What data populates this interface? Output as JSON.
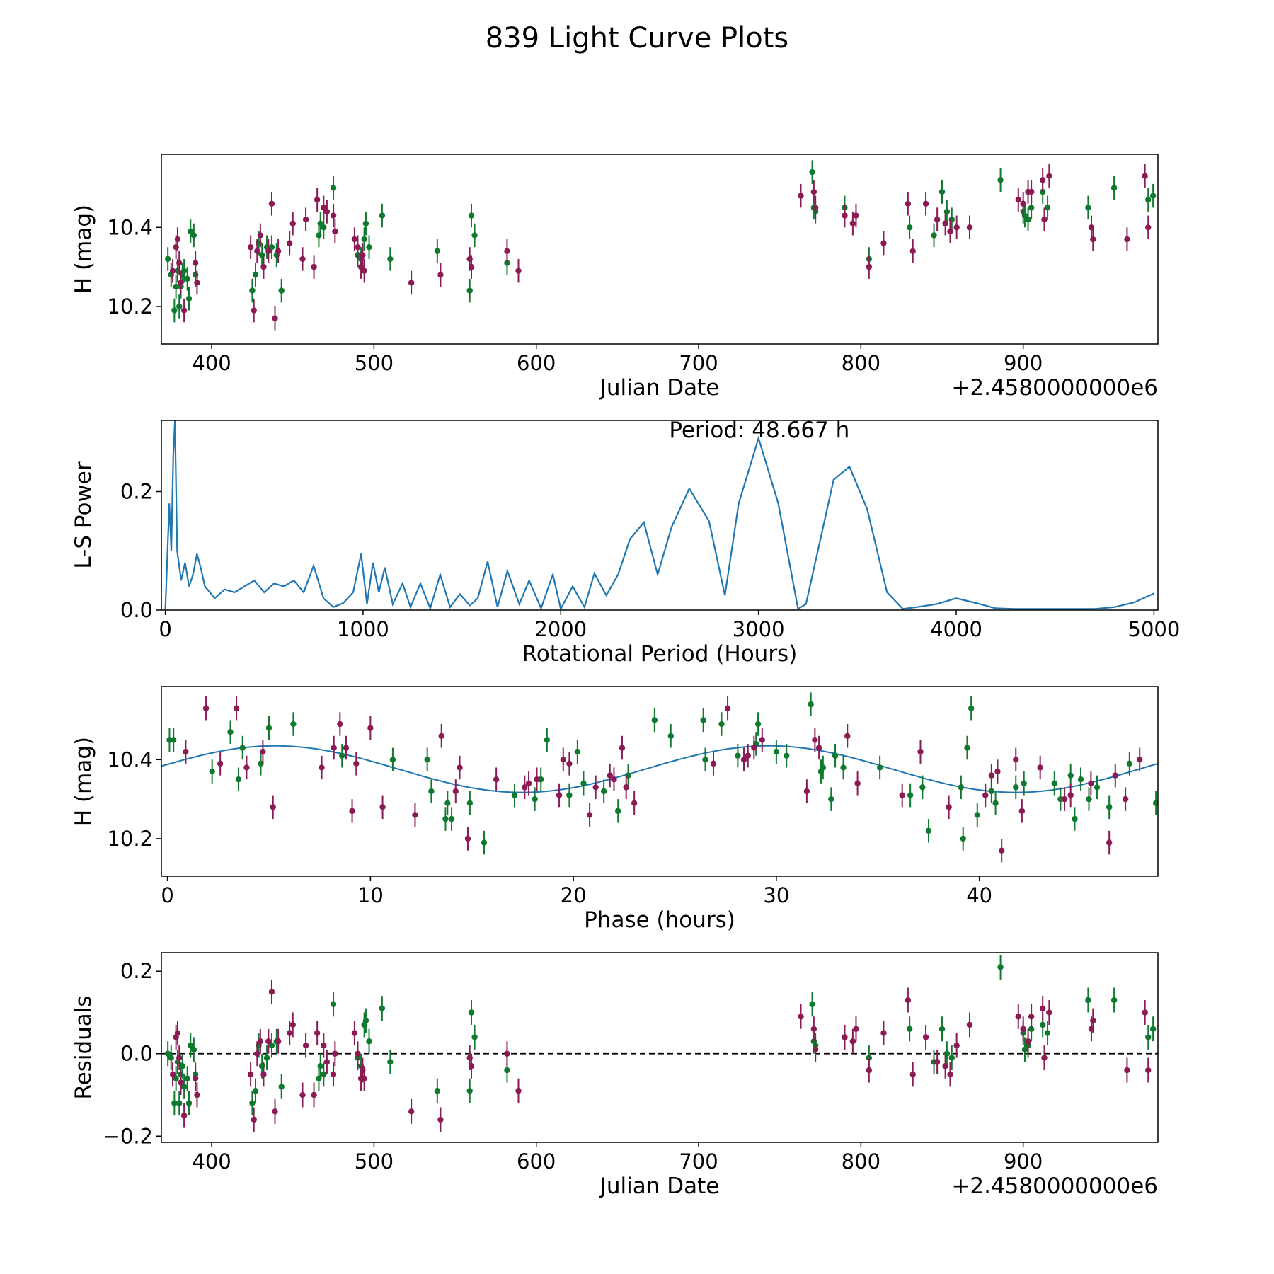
{
  "figure_title": "839 Light Curve Plots",
  "colors": {
    "green": "#0f7a2e",
    "magenta": "#8b1a55",
    "model": "#1f77b4",
    "axis": "#000000"
  },
  "chart_data": [
    {
      "type": "scatter",
      "id": "lc",
      "title": "",
      "xlabel": "Julian Date",
      "ylabel": "H (mag)",
      "offset_label": "+2.4580000000e6",
      "xlim": [
        369,
        983
      ],
      "ylim": [
        10.105,
        10.585
      ],
      "xticks": [
        400,
        500,
        600,
        700,
        800,
        900
      ],
      "yticks": [
        10.2,
        10.4
      ],
      "series": [
        {
          "name": "green",
          "error": 0.03,
          "x": [
            373,
            375,
            377,
            378,
            379,
            380,
            381,
            382,
            383,
            385,
            386,
            387,
            389,
            390,
            425,
            427,
            429,
            431,
            434,
            437,
            440,
            443,
            466,
            467,
            469,
            475,
            490,
            492,
            494,
            495,
            497,
            505,
            510,
            539,
            559,
            560,
            562,
            582,
            770,
            771,
            772,
            790,
            805,
            830,
            845,
            850,
            853,
            856,
            886,
            900,
            901,
            903,
            905,
            912,
            915,
            940,
            956,
            977,
            980
          ],
          "y": [
            10.32,
            10.28,
            10.19,
            10.25,
            10.29,
            10.2,
            10.25,
            10.28,
            10.29,
            10.27,
            10.22,
            10.39,
            10.38,
            10.28,
            10.24,
            10.28,
            10.36,
            10.33,
            10.35,
            10.35,
            10.33,
            10.24,
            10.38,
            10.41,
            10.4,
            10.5,
            10.33,
            10.32,
            10.37,
            10.41,
            10.35,
            10.43,
            10.32,
            10.34,
            10.24,
            10.43,
            10.38,
            10.31,
            10.54,
            10.45,
            10.44,
            10.45,
            10.32,
            10.4,
            10.38,
            10.49,
            10.44,
            10.42,
            10.52,
            10.44,
            10.43,
            10.42,
            10.45,
            10.49,
            10.45,
            10.45,
            10.5,
            10.47,
            10.48
          ]
        },
        {
          "name": "magenta",
          "error": 0.03,
          "x": [
            376,
            378,
            379,
            380,
            381,
            383,
            390,
            391,
            424,
            426,
            428,
            430,
            432,
            435,
            437,
            439,
            441,
            448,
            450,
            456,
            458,
            463,
            465,
            469,
            471,
            475,
            476,
            488,
            490,
            492,
            493,
            494,
            523,
            541,
            559,
            560,
            582,
            589,
            763,
            771,
            772,
            790,
            795,
            797,
            805,
            814,
            829,
            832,
            840,
            847,
            852,
            855,
            859,
            867,
            897,
            900,
            903,
            905,
            912,
            913,
            916,
            942,
            943,
            964,
            975,
            977
          ],
          "y": [
            10.29,
            10.35,
            10.37,
            10.31,
            10.26,
            10.19,
            10.31,
            10.26,
            10.35,
            10.19,
            10.34,
            10.38,
            10.3,
            10.34,
            10.46,
            10.17,
            10.34,
            10.36,
            10.41,
            10.32,
            10.42,
            10.3,
            10.47,
            10.45,
            10.44,
            10.43,
            10.39,
            10.37,
            10.35,
            10.3,
            10.33,
            10.29,
            10.26,
            10.28,
            10.32,
            10.3,
            10.34,
            10.29,
            10.48,
            10.49,
            10.45,
            10.43,
            10.41,
            10.43,
            10.3,
            10.36,
            10.46,
            10.34,
            10.46,
            10.42,
            10.41,
            10.39,
            10.4,
            10.4,
            10.47,
            10.46,
            10.49,
            10.49,
            10.52,
            10.42,
            10.53,
            10.4,
            10.37,
            10.37,
            10.53,
            10.4
          ]
        }
      ]
    },
    {
      "type": "line",
      "id": "ls",
      "title": "",
      "xlabel": "Rotational Period (Hours)",
      "ylabel": "L-S Power",
      "annotation": "Period: 48.667 h",
      "xlim": [
        -20,
        5020
      ],
      "ylim": [
        0,
        0.32
      ],
      "xticks": [
        0,
        1000,
        2000,
        3000,
        4000,
        5000
      ],
      "yticks": [
        0.0,
        0.2
      ],
      "series": [
        {
          "name": "L-S Power",
          "x": [
            0,
            20,
            30,
            40,
            48.7,
            60,
            80,
            100,
            120,
            140,
            160,
            180,
            200,
            250,
            300,
            350,
            400,
            450,
            500,
            550,
            600,
            650,
            700,
            750,
            800,
            850,
            900,
            950,
            990,
            1020,
            1050,
            1080,
            1110,
            1150,
            1200,
            1240,
            1290,
            1340,
            1390,
            1440,
            1490,
            1540,
            1580,
            1630,
            1680,
            1730,
            1790,
            1840,
            1900,
            1960,
            2000,
            2060,
            2120,
            2170,
            2230,
            2290,
            2350,
            2420,
            2490,
            2560,
            2650,
            2750,
            2830,
            2900,
            3000,
            3100,
            3200,
            3240,
            3300,
            3380,
            3460,
            3550,
            3650,
            3730,
            3800,
            3900,
            4000,
            4100,
            4200,
            4300,
            4400,
            4500,
            4600,
            4700,
            4800,
            4900,
            5000
          ],
          "y": [
            0.0,
            0.18,
            0.1,
            0.26,
            0.32,
            0.1,
            0.05,
            0.08,
            0.04,
            0.06,
            0.095,
            0.07,
            0.04,
            0.02,
            0.035,
            0.03,
            0.04,
            0.05,
            0.03,
            0.045,
            0.04,
            0.05,
            0.03,
            0.075,
            0.02,
            0.005,
            0.012,
            0.03,
            0.095,
            0.01,
            0.08,
            0.03,
            0.072,
            0.01,
            0.045,
            0.005,
            0.045,
            0.003,
            0.06,
            0.005,
            0.027,
            0.008,
            0.02,
            0.082,
            0.005,
            0.066,
            0.01,
            0.05,
            0.003,
            0.06,
            0.002,
            0.04,
            0.005,
            0.062,
            0.025,
            0.06,
            0.12,
            0.148,
            0.06,
            0.14,
            0.205,
            0.15,
            0.025,
            0.18,
            0.29,
            0.18,
            0.002,
            0.01,
            0.1,
            0.22,
            0.242,
            0.17,
            0.03,
            0.002,
            0.005,
            0.01,
            0.02,
            0.012,
            0.003,
            0.002,
            0.002,
            0.002,
            0.002,
            0.002,
            0.005,
            0.013,
            0.028
          ]
        }
      ]
    },
    {
      "type": "scatter",
      "id": "phase",
      "title": "",
      "xlabel": "Phase (hours)",
      "ylabel": "H (mag)",
      "xlim": [
        -0.3,
        48.8
      ],
      "ylim": [
        10.105,
        10.585
      ],
      "xticks": [
        0,
        10,
        20,
        30,
        40
      ],
      "yticks": [
        10.2,
        10.4
      ],
      "model": {
        "name": "sine-fit",
        "period": 24.33,
        "mean": 10.376,
        "amplitude": 0.059,
        "phase_peak": 5.3
      },
      "series": [
        {
          "name": "green",
          "error": 0.03,
          "x": [
            0.1,
            0.3,
            2.2,
            3.1,
            3.5,
            3.7,
            4.6,
            5.0,
            6.2,
            8.6,
            11.1,
            12.8,
            13.0,
            13.7,
            13.8,
            14.0,
            14.9,
            15.6,
            17.1,
            18.1,
            18.4,
            18.7,
            19.8,
            20.2,
            20.5,
            21.5,
            22.2,
            22.7,
            24.0,
            24.8,
            26.4,
            26.5,
            27.3,
            28.1,
            29.0,
            29.1,
            30.0,
            30.5,
            31.7,
            32.2,
            32.3,
            32.7,
            32.9,
            33.3,
            35.1,
            36.6,
            37.2,
            37.5,
            39.1,
            39.2,
            39.4,
            39.6,
            39.9,
            40.6,
            40.8,
            41.8,
            42.2,
            43.7,
            44.0,
            44.5,
            44.7,
            45.0,
            45.4,
            45.8,
            46.4,
            47.4,
            48.7
          ],
          "y": [
            10.45,
            10.45,
            10.37,
            10.47,
            10.35,
            10.43,
            10.39,
            10.48,
            10.49,
            10.41,
            10.4,
            10.4,
            10.32,
            10.25,
            10.29,
            10.25,
            10.29,
            10.19,
            10.31,
            10.3,
            10.35,
            10.45,
            10.31,
            10.42,
            10.34,
            10.32,
            10.27,
            10.36,
            10.5,
            10.46,
            10.5,
            10.4,
            10.49,
            10.41,
            10.44,
            10.49,
            10.42,
            10.41,
            10.54,
            10.37,
            10.38,
            10.3,
            10.41,
            10.38,
            10.38,
            10.31,
            10.33,
            10.22,
            10.33,
            10.2,
            10.43,
            10.53,
            10.26,
            10.32,
            10.29,
            10.33,
            10.34,
            10.34,
            10.3,
            10.36,
            10.25,
            10.35,
            10.3,
            10.33,
            10.28,
            10.39,
            10.29
          ]
        },
        {
          "name": "magenta",
          "error": 0.03,
          "x": [
            0.9,
            1.9,
            2.6,
            3.4,
            3.9,
            4.7,
            5.2,
            7.6,
            8.2,
            8.5,
            8.8,
            9.1,
            9.3,
            10.0,
            10.6,
            12.2,
            13.5,
            14.2,
            14.4,
            14.8,
            16.2,
            17.6,
            17.8,
            18.2,
            19.3,
            19.5,
            19.8,
            20.8,
            21.1,
            21.8,
            22.0,
            22.4,
            22.6,
            23.0,
            26.9,
            27.6,
            28.4,
            28.6,
            28.9,
            29.3,
            31.5,
            31.9,
            32.1,
            33.5,
            34.0,
            36.2,
            37.1,
            38.5,
            40.3,
            40.6,
            40.9,
            41.1,
            41.8,
            42.1,
            43.0,
            44.2,
            44.5,
            45.5,
            46.4,
            46.7,
            47.2,
            47.9
          ],
          "y": [
            10.42,
            10.53,
            10.39,
            10.53,
            10.38,
            10.42,
            10.28,
            10.38,
            10.43,
            10.49,
            10.43,
            10.27,
            10.39,
            10.48,
            10.28,
            10.26,
            10.46,
            10.32,
            10.38,
            10.2,
            10.35,
            10.33,
            10.34,
            10.35,
            10.31,
            10.4,
            10.39,
            10.26,
            10.33,
            10.36,
            10.35,
            10.43,
            10.33,
            10.29,
            10.39,
            10.53,
            10.4,
            10.41,
            10.43,
            10.45,
            10.32,
            10.45,
            10.43,
            10.46,
            10.34,
            10.31,
            10.42,
            10.28,
            10.31,
            10.36,
            10.37,
            10.17,
            10.4,
            10.27,
            10.38,
            10.3,
            10.31,
            10.34,
            10.19,
            10.36,
            10.3,
            10.4
          ]
        }
      ]
    },
    {
      "type": "scatter",
      "id": "resid",
      "title": "",
      "xlabel": "Julian Date",
      "ylabel": "Residuals",
      "offset_label": "+2.4580000000e6",
      "xlim": [
        369,
        983
      ],
      "ylim": [
        -0.215,
        0.245
      ],
      "xticks": [
        400,
        500,
        600,
        700,
        800,
        900
      ],
      "yticks": [
        -0.2,
        0.0,
        0.2
      ],
      "hline": 0.0,
      "series": [
        {
          "name": "green",
          "error": 0.03,
          "x": [
            373,
            375,
            377,
            378,
            379,
            380,
            381,
            382,
            383,
            385,
            386,
            387,
            389,
            390,
            425,
            427,
            429,
            431,
            434,
            437,
            440,
            443,
            466,
            467,
            469,
            475,
            490,
            492,
            494,
            495,
            497,
            505,
            510,
            539,
            559,
            560,
            562,
            582,
            770,
            771,
            772,
            790,
            805,
            830,
            845,
            850,
            853,
            856,
            886,
            900,
            901,
            903,
            905,
            912,
            915,
            940,
            956,
            977,
            980
          ],
          "y": [
            0.0,
            -0.01,
            -0.12,
            -0.06,
            -0.02,
            -0.12,
            -0.05,
            -0.03,
            -0.08,
            -0.06,
            -0.12,
            0.02,
            0.01,
            -0.05,
            -0.12,
            -0.09,
            0.02,
            -0.03,
            -0.01,
            0.02,
            0.03,
            -0.08,
            -0.06,
            -0.03,
            -0.05,
            0.12,
            -0.01,
            -0.03,
            0.07,
            0.08,
            0.03,
            0.11,
            -0.02,
            -0.09,
            -0.09,
            0.1,
            0.04,
            -0.04,
            0.12,
            0.03,
            0.02,
            0.04,
            -0.01,
            0.06,
            -0.02,
            0.06,
            0.0,
            -0.01,
            0.21,
            0.05,
            0.01,
            0.02,
            0.06,
            0.07,
            0.05,
            0.13,
            0.13,
            0.04,
            0.06
          ]
        },
        {
          "name": "magenta",
          "error": 0.03,
          "x": [
            376,
            378,
            379,
            380,
            381,
            383,
            390,
            391,
            424,
            426,
            428,
            430,
            432,
            435,
            437,
            439,
            441,
            448,
            450,
            456,
            458,
            463,
            465,
            469,
            471,
            475,
            476,
            488,
            490,
            492,
            493,
            494,
            523,
            541,
            559,
            560,
            582,
            589,
            763,
            771,
            772,
            790,
            795,
            797,
            805,
            814,
            829,
            832,
            840,
            847,
            852,
            855,
            859,
            867,
            897,
            900,
            903,
            905,
            912,
            913,
            916,
            942,
            943,
            964,
            975,
            977
          ],
          "y": [
            -0.05,
            0.04,
            0.05,
            -0.01,
            -0.07,
            -0.15,
            -0.06,
            -0.1,
            -0.05,
            -0.16,
            0.0,
            0.03,
            -0.05,
            0.03,
            0.15,
            -0.14,
            0.03,
            0.05,
            0.07,
            -0.1,
            0.02,
            -0.1,
            0.05,
            0.02,
            -0.02,
            -0.05,
            0.0,
            0.05,
            0.0,
            -0.06,
            -0.04,
            -0.06,
            -0.14,
            -0.16,
            -0.01,
            -0.03,
            0.0,
            -0.09,
            0.09,
            0.06,
            0.01,
            0.04,
            0.03,
            0.06,
            -0.04,
            0.05,
            0.13,
            -0.05,
            0.04,
            -0.02,
            -0.03,
            -0.05,
            0.02,
            0.07,
            0.09,
            0.06,
            0.03,
            0.09,
            0.11,
            -0.01,
            0.1,
            0.06,
            0.08,
            -0.04,
            0.1,
            -0.04
          ]
        }
      ]
    }
  ]
}
